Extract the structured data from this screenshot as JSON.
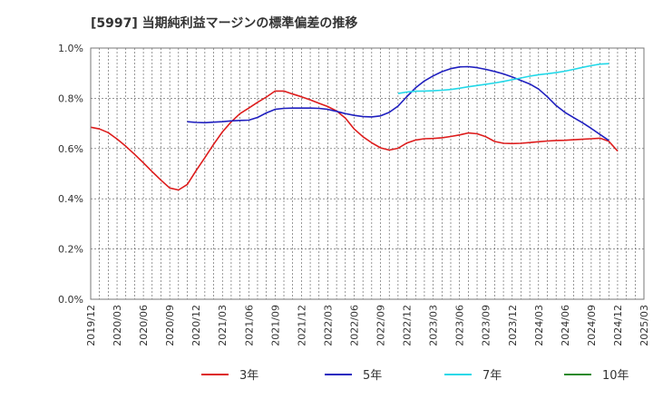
{
  "chart_data": {
    "type": "line",
    "title": "[5997]  当期純利益マージンの標準偏差の推移",
    "ylim": [
      0,
      0.01
    ],
    "yticks": [
      0,
      0.002,
      0.004,
      0.006,
      0.008,
      0.01
    ],
    "ytick_labels": [
      "0.0%",
      "0.2%",
      "0.4%",
      "0.6%",
      "0.8%",
      "1.0%"
    ],
    "xticks": [
      "2019/12",
      "2020/03",
      "2020/06",
      "2020/09",
      "2020/12",
      "2021/03",
      "2021/06",
      "2021/09",
      "2021/12",
      "2022/03",
      "2022/06",
      "2022/09",
      "2022/12",
      "2023/03",
      "2023/06",
      "2023/09",
      "2023/12",
      "2024/03",
      "2024/06",
      "2024/09",
      "2024/12",
      "2025/03"
    ],
    "grid": true,
    "legend_position": "bottom",
    "series": [
      {
        "name": "3年",
        "color": "#dd1c1c",
        "points": [
          [
            "2019/12",
            0.00685
          ],
          [
            "2020/01",
            0.00678
          ],
          [
            "2020/02",
            0.00663
          ],
          [
            "2020/03",
            0.00638
          ],
          [
            "2020/04",
            0.00609
          ],
          [
            "2020/05",
            0.00577
          ],
          [
            "2020/06",
            0.00543
          ],
          [
            "2020/07",
            0.00508
          ],
          [
            "2020/08",
            0.00474
          ],
          [
            "2020/09",
            0.00443
          ],
          [
            "2020/10",
            0.00435
          ],
          [
            "2020/11",
            0.00457
          ],
          [
            "2020/12",
            0.00512
          ],
          [
            "2021/01",
            0.00564
          ],
          [
            "2021/02",
            0.00617
          ],
          [
            "2021/03",
            0.00666
          ],
          [
            "2021/04",
            0.00706
          ],
          [
            "2021/05",
            0.00739
          ],
          [
            "2021/06",
            0.00761
          ],
          [
            "2021/07",
            0.00784
          ],
          [
            "2021/08",
            0.00805
          ],
          [
            "2021/09",
            0.00829
          ],
          [
            "2021/10",
            0.00829
          ],
          [
            "2021/11",
            0.00817
          ],
          [
            "2021/12",
            0.00806
          ],
          [
            "2022/01",
            0.00794
          ],
          [
            "2022/02",
            0.0078
          ],
          [
            "2022/03",
            0.00767
          ],
          [
            "2022/04",
            0.0075
          ],
          [
            "2022/05",
            0.00721
          ],
          [
            "2022/06",
            0.00678
          ],
          [
            "2022/07",
            0.00647
          ],
          [
            "2022/08",
            0.00623
          ],
          [
            "2022/09",
            0.00603
          ],
          [
            "2022/10",
            0.00594
          ],
          [
            "2022/11",
            0.00601
          ],
          [
            "2022/12",
            0.00622
          ],
          [
            "2023/01",
            0.00634
          ],
          [
            "2023/02",
            0.00639
          ],
          [
            "2023/03",
            0.0064
          ],
          [
            "2023/04",
            0.00643
          ],
          [
            "2023/05",
            0.00648
          ],
          [
            "2023/06",
            0.00654
          ],
          [
            "2023/07",
            0.00662
          ],
          [
            "2023/08",
            0.00659
          ],
          [
            "2023/09",
            0.00647
          ],
          [
            "2023/10",
            0.00628
          ],
          [
            "2023/11",
            0.00621
          ],
          [
            "2023/12",
            0.0062
          ],
          [
            "2024/01",
            0.00621
          ],
          [
            "2024/02",
            0.00624
          ],
          [
            "2024/03",
            0.00627
          ],
          [
            "2024/04",
            0.0063
          ],
          [
            "2024/05",
            0.00632
          ],
          [
            "2024/06",
            0.00633
          ],
          [
            "2024/07",
            0.00635
          ],
          [
            "2024/08",
            0.00637
          ],
          [
            "2024/09",
            0.00639
          ],
          [
            "2024/10",
            0.00641
          ],
          [
            "2024/11",
            0.00629
          ],
          [
            "2024/12",
            0.0059
          ]
        ]
      },
      {
        "name": "5年",
        "color": "#1f1fbf",
        "points": [
          [
            "2020/11",
            0.00707
          ],
          [
            "2020/12",
            0.00704
          ],
          [
            "2021/01",
            0.00703
          ],
          [
            "2021/02",
            0.00705
          ],
          [
            "2021/03",
            0.00707
          ],
          [
            "2021/04",
            0.0071
          ],
          [
            "2021/05",
            0.00712
          ],
          [
            "2021/06",
            0.00713
          ],
          [
            "2021/07",
            0.00724
          ],
          [
            "2021/08",
            0.00742
          ],
          [
            "2021/09",
            0.00756
          ],
          [
            "2021/10",
            0.0076
          ],
          [
            "2021/11",
            0.00761
          ],
          [
            "2021/12",
            0.00761
          ],
          [
            "2022/01",
            0.00761
          ],
          [
            "2022/02",
            0.0076
          ],
          [
            "2022/03",
            0.00756
          ],
          [
            "2022/04",
            0.00748
          ],
          [
            "2022/05",
            0.00739
          ],
          [
            "2022/06",
            0.00732
          ],
          [
            "2022/07",
            0.00727
          ],
          [
            "2022/08",
            0.00726
          ],
          [
            "2022/09",
            0.0073
          ],
          [
            "2022/10",
            0.00744
          ],
          [
            "2022/11",
            0.00769
          ],
          [
            "2022/12",
            0.00807
          ],
          [
            "2023/01",
            0.00842
          ],
          [
            "2023/02",
            0.00869
          ],
          [
            "2023/03",
            0.00889
          ],
          [
            "2023/04",
            0.00906
          ],
          [
            "2023/05",
            0.00918
          ],
          [
            "2023/06",
            0.00925
          ],
          [
            "2023/07",
            0.00926
          ],
          [
            "2023/08",
            0.00922
          ],
          [
            "2023/09",
            0.00915
          ],
          [
            "2023/10",
            0.00907
          ],
          [
            "2023/11",
            0.00897
          ],
          [
            "2023/12",
            0.00885
          ],
          [
            "2024/01",
            0.00871
          ],
          [
            "2024/02",
            0.00857
          ],
          [
            "2024/03",
            0.00837
          ],
          [
            "2024/04",
            0.00806
          ],
          [
            "2024/05",
            0.00771
          ],
          [
            "2024/06",
            0.00744
          ],
          [
            "2024/07",
            0.00723
          ],
          [
            "2024/08",
            0.00703
          ],
          [
            "2024/09",
            0.0068
          ],
          [
            "2024/10",
            0.00656
          ],
          [
            "2024/11",
            0.00632
          ]
        ]
      },
      {
        "name": "7年",
        "color": "#22d8e8",
        "points": [
          [
            "2022/11",
            0.00819
          ],
          [
            "2022/12",
            0.00825
          ],
          [
            "2023/01",
            0.00828
          ],
          [
            "2023/02",
            0.00829
          ],
          [
            "2023/03",
            0.0083
          ],
          [
            "2023/04",
            0.00832
          ],
          [
            "2023/05",
            0.00835
          ],
          [
            "2023/06",
            0.0084
          ],
          [
            "2023/07",
            0.00846
          ],
          [
            "2023/08",
            0.00851
          ],
          [
            "2023/09",
            0.00856
          ],
          [
            "2023/10",
            0.00861
          ],
          [
            "2023/11",
            0.00867
          ],
          [
            "2023/12",
            0.00874
          ],
          [
            "2024/01",
            0.00881
          ],
          [
            "2024/02",
            0.00888
          ],
          [
            "2024/03",
            0.00894
          ],
          [
            "2024/04",
            0.00898
          ],
          [
            "2024/05",
            0.00902
          ],
          [
            "2024/06",
            0.00908
          ],
          [
            "2024/07",
            0.00915
          ],
          [
            "2024/08",
            0.00923
          ],
          [
            "2024/09",
            0.0093
          ],
          [
            "2024/10",
            0.00936
          ],
          [
            "2024/11",
            0.00938
          ]
        ]
      },
      {
        "name": "10年",
        "color": "#2a8a2a",
        "points": []
      }
    ]
  }
}
